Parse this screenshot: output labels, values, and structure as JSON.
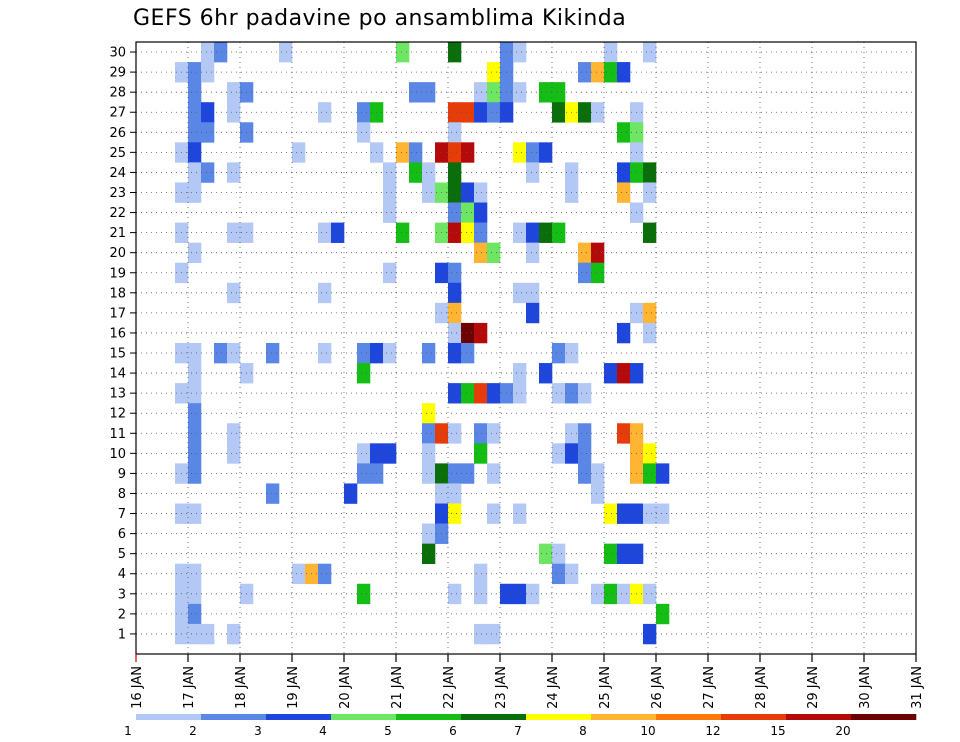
{
  "chart_data": {
    "type": "heatmap",
    "title": "GEFS 6hr padavine po ansamblima Kikinda",
    "xlabel": "",
    "ylabel": "",
    "x_ticks": [
      "16 JAN",
      "17 JAN",
      "18 JAN",
      "19 JAN",
      "20 JAN",
      "21 JAN",
      "22 JAN",
      "23 JAN",
      "24 JAN",
      "25 JAN",
      "26 JAN",
      "27 JAN",
      "28 JAN",
      "29 JAN",
      "30 JAN",
      "31 JAN"
    ],
    "x_unit_columns_per_tick": 4,
    "y_ticks": [
      1,
      2,
      3,
      4,
      5,
      6,
      7,
      8,
      9,
      10,
      11,
      12,
      13,
      14,
      15,
      16,
      17,
      18,
      19,
      20,
      21,
      22,
      23,
      24,
      25,
      26,
      27,
      28,
      29,
      30
    ],
    "grid": true,
    "legend": {
      "placement": "bottom",
      "labels": [
        "1",
        "2",
        "3",
        "4",
        "5",
        "6",
        "7",
        "8",
        "10",
        "12",
        "15",
        "20"
      ],
      "colors": [
        "#b4c8f5",
        "#5a87e6",
        "#1e46dc",
        "#6ee664",
        "#14be14",
        "#0a6e0a",
        "#ffff00",
        "#ffb432",
        "#ff780a",
        "#e63c0a",
        "#b40a0a",
        "#6e0000"
      ]
    },
    "cells": [
      [
        5,
        30,
        1
      ],
      [
        6,
        30,
        2
      ],
      [
        11,
        30,
        1
      ],
      [
        20,
        30,
        4
      ],
      [
        24,
        30,
        6
      ],
      [
        28,
        30,
        2
      ],
      [
        29,
        30,
        1
      ],
      [
        36,
        30,
        1
      ],
      [
        39,
        30,
        1
      ],
      [
        3,
        29,
        1
      ],
      [
        4,
        29,
        2
      ],
      [
        5,
        29,
        1
      ],
      [
        27,
        29,
        7
      ],
      [
        28,
        29,
        2
      ],
      [
        34,
        29,
        2
      ],
      [
        35,
        29,
        8
      ],
      [
        36,
        29,
        5
      ],
      [
        37,
        29,
        3
      ],
      [
        4,
        28,
        2
      ],
      [
        7,
        28,
        1
      ],
      [
        8,
        28,
        2
      ],
      [
        21,
        28,
        2
      ],
      [
        22,
        28,
        2
      ],
      [
        26,
        28,
        1
      ],
      [
        27,
        28,
        4
      ],
      [
        28,
        28,
        2
      ],
      [
        29,
        28,
        1
      ],
      [
        31,
        28,
        5
      ],
      [
        32,
        28,
        5
      ],
      [
        4,
        27,
        2
      ],
      [
        5,
        27,
        3
      ],
      [
        7,
        27,
        1
      ],
      [
        14,
        27,
        1
      ],
      [
        17,
        27,
        2
      ],
      [
        18,
        27,
        5
      ],
      [
        24,
        27,
        10
      ],
      [
        25,
        27,
        10
      ],
      [
        26,
        27,
        3
      ],
      [
        27,
        27,
        2
      ],
      [
        28,
        27,
        3
      ],
      [
        32,
        27,
        6
      ],
      [
        33,
        27,
        7
      ],
      [
        34,
        27,
        6
      ],
      [
        35,
        27,
        1
      ],
      [
        38,
        27,
        1
      ],
      [
        4,
        26,
        2
      ],
      [
        5,
        26,
        2
      ],
      [
        8,
        26,
        2
      ],
      [
        17,
        26,
        1
      ],
      [
        24,
        26,
        1
      ],
      [
        37,
        26,
        5
      ],
      [
        38,
        26,
        4
      ],
      [
        3,
        25,
        1
      ],
      [
        4,
        25,
        3
      ],
      [
        12,
        25,
        1
      ],
      [
        18,
        25,
        1
      ],
      [
        20,
        25,
        8
      ],
      [
        21,
        25,
        2
      ],
      [
        23,
        25,
        11
      ],
      [
        24,
        25,
        10
      ],
      [
        25,
        25,
        11
      ],
      [
        29,
        25,
        7
      ],
      [
        30,
        25,
        2
      ],
      [
        31,
        25,
        3
      ],
      [
        38,
        25,
        1
      ],
      [
        4,
        24,
        1
      ],
      [
        5,
        24,
        2
      ],
      [
        7,
        24,
        1
      ],
      [
        19,
        24,
        1
      ],
      [
        21,
        24,
        5
      ],
      [
        22,
        24,
        1
      ],
      [
        24,
        24,
        6
      ],
      [
        30,
        24,
        1
      ],
      [
        33,
        24,
        1
      ],
      [
        37,
        24,
        3
      ],
      [
        38,
        24,
        5
      ],
      [
        39,
        24,
        6
      ],
      [
        3,
        23,
        1
      ],
      [
        4,
        23,
        1
      ],
      [
        19,
        23,
        1
      ],
      [
        22,
        23,
        1
      ],
      [
        23,
        23,
        4
      ],
      [
        24,
        23,
        6
      ],
      [
        25,
        23,
        3
      ],
      [
        26,
        23,
        1
      ],
      [
        33,
        23,
        1
      ],
      [
        37,
        23,
        8
      ],
      [
        39,
        23,
        1
      ],
      [
        19,
        22,
        1
      ],
      [
        24,
        22,
        2
      ],
      [
        25,
        22,
        4
      ],
      [
        26,
        22,
        3
      ],
      [
        38,
        22,
        1
      ],
      [
        3,
        21,
        1
      ],
      [
        7,
        21,
        1
      ],
      [
        8,
        21,
        1
      ],
      [
        14,
        21,
        1
      ],
      [
        15,
        21,
        3
      ],
      [
        20,
        21,
        5
      ],
      [
        23,
        21,
        4
      ],
      [
        24,
        21,
        11
      ],
      [
        25,
        21,
        7
      ],
      [
        26,
        21,
        2
      ],
      [
        29,
        21,
        1
      ],
      [
        30,
        21,
        3
      ],
      [
        31,
        21,
        6
      ],
      [
        32,
        21,
        5
      ],
      [
        39,
        21,
        6
      ],
      [
        4,
        20,
        1
      ],
      [
        26,
        20,
        8
      ],
      [
        27,
        20,
        4
      ],
      [
        30,
        20,
        1
      ],
      [
        34,
        20,
        8
      ],
      [
        35,
        20,
        11
      ],
      [
        3,
        19,
        1
      ],
      [
        19,
        19,
        1
      ],
      [
        23,
        19,
        3
      ],
      [
        24,
        19,
        2
      ],
      [
        34,
        19,
        2
      ],
      [
        35,
        19,
        5
      ],
      [
        7,
        18,
        1
      ],
      [
        14,
        18,
        1
      ],
      [
        24,
        18,
        3
      ],
      [
        29,
        18,
        1
      ],
      [
        30,
        18,
        1
      ],
      [
        23,
        17,
        1
      ],
      [
        24,
        17,
        8
      ],
      [
        30,
        17,
        3
      ],
      [
        38,
        17,
        1
      ],
      [
        39,
        17,
        8
      ],
      [
        24,
        16,
        1
      ],
      [
        25,
        16,
        12
      ],
      [
        26,
        16,
        11
      ],
      [
        37,
        16,
        3
      ],
      [
        39,
        16,
        1
      ],
      [
        3,
        15,
        1
      ],
      [
        4,
        15,
        1
      ],
      [
        6,
        15,
        2
      ],
      [
        7,
        15,
        1
      ],
      [
        10,
        15,
        2
      ],
      [
        14,
        15,
        1
      ],
      [
        17,
        15,
        2
      ],
      [
        18,
        15,
        3
      ],
      [
        19,
        15,
        1
      ],
      [
        22,
        15,
        2
      ],
      [
        24,
        15,
        3
      ],
      [
        25,
        15,
        2
      ],
      [
        32,
        15,
        2
      ],
      [
        33,
        15,
        1
      ],
      [
        4,
        14,
        1
      ],
      [
        8,
        14,
        1
      ],
      [
        17,
        14,
        5
      ],
      [
        29,
        14,
        1
      ],
      [
        31,
        14,
        3
      ],
      [
        36,
        14,
        3
      ],
      [
        37,
        14,
        11
      ],
      [
        38,
        14,
        3
      ],
      [
        3,
        13,
        1
      ],
      [
        4,
        13,
        1
      ],
      [
        24,
        13,
        3
      ],
      [
        25,
        13,
        5
      ],
      [
        26,
        13,
        10
      ],
      [
        27,
        13,
        3
      ],
      [
        28,
        13,
        2
      ],
      [
        29,
        13,
        1
      ],
      [
        32,
        13,
        1
      ],
      [
        33,
        13,
        2
      ],
      [
        34,
        13,
        1
      ],
      [
        4,
        12,
        2
      ],
      [
        22,
        12,
        7
      ],
      [
        4,
        11,
        2
      ],
      [
        7,
        11,
        1
      ],
      [
        22,
        11,
        2
      ],
      [
        23,
        11,
        10
      ],
      [
        24,
        11,
        1
      ],
      [
        26,
        11,
        2
      ],
      [
        27,
        11,
        1
      ],
      [
        33,
        11,
        1
      ],
      [
        34,
        11,
        2
      ],
      [
        37,
        11,
        10
      ],
      [
        38,
        11,
        8
      ],
      [
        4,
        10,
        2
      ],
      [
        7,
        10,
        1
      ],
      [
        17,
        10,
        1
      ],
      [
        18,
        10,
        3
      ],
      [
        19,
        10,
        3
      ],
      [
        22,
        10,
        1
      ],
      [
        26,
        10,
        5
      ],
      [
        32,
        10,
        1
      ],
      [
        33,
        10,
        3
      ],
      [
        34,
        10,
        2
      ],
      [
        38,
        10,
        8
      ],
      [
        39,
        10,
        7
      ],
      [
        3,
        9,
        1
      ],
      [
        4,
        9,
        2
      ],
      [
        17,
        9,
        2
      ],
      [
        18,
        9,
        2
      ],
      [
        22,
        9,
        1
      ],
      [
        23,
        9,
        6
      ],
      [
        24,
        9,
        2
      ],
      [
        25,
        9,
        2
      ],
      [
        27,
        9,
        1
      ],
      [
        34,
        9,
        2
      ],
      [
        35,
        9,
        1
      ],
      [
        38,
        9,
        8
      ],
      [
        39,
        9,
        5
      ],
      [
        40,
        9,
        3
      ],
      [
        10,
        8,
        2
      ],
      [
        16,
        8,
        3
      ],
      [
        23,
        8,
        1
      ],
      [
        24,
        8,
        1
      ],
      [
        35,
        8,
        1
      ],
      [
        3,
        7,
        1
      ],
      [
        4,
        7,
        1
      ],
      [
        23,
        7,
        3
      ],
      [
        24,
        7,
        7
      ],
      [
        27,
        7,
        1
      ],
      [
        29,
        7,
        1
      ],
      [
        36,
        7,
        7
      ],
      [
        37,
        7,
        3
      ],
      [
        38,
        7,
        3
      ],
      [
        39,
        7,
        1
      ],
      [
        40,
        7,
        1
      ],
      [
        22,
        6,
        1
      ],
      [
        23,
        6,
        2
      ],
      [
        22,
        5,
        6
      ],
      [
        31,
        5,
        4
      ],
      [
        32,
        5,
        1
      ],
      [
        36,
        5,
        5
      ],
      [
        37,
        5,
        3
      ],
      [
        38,
        5,
        3
      ],
      [
        3,
        4,
        1
      ],
      [
        4,
        4,
        1
      ],
      [
        12,
        4,
        1
      ],
      [
        13,
        4,
        8
      ],
      [
        14,
        4,
        2
      ],
      [
        26,
        4,
        1
      ],
      [
        32,
        4,
        2
      ],
      [
        33,
        4,
        1
      ],
      [
        3,
        3,
        1
      ],
      [
        4,
        3,
        1
      ],
      [
        8,
        3,
        1
      ],
      [
        17,
        3,
        5
      ],
      [
        24,
        3,
        1
      ],
      [
        26,
        3,
        1
      ],
      [
        28,
        3,
        3
      ],
      [
        29,
        3,
        3
      ],
      [
        30,
        3,
        1
      ],
      [
        35,
        3,
        1
      ],
      [
        36,
        3,
        5
      ],
      [
        37,
        3,
        1
      ],
      [
        38,
        3,
        7
      ],
      [
        39,
        3,
        1
      ],
      [
        3,
        2,
        1
      ],
      [
        4,
        2,
        2
      ],
      [
        40,
        2,
        5
      ],
      [
        3,
        1,
        1
      ],
      [
        4,
        1,
        1
      ],
      [
        5,
        1,
        1
      ],
      [
        7,
        1,
        1
      ],
      [
        26,
        1,
        1
      ],
      [
        27,
        1,
        1
      ],
      [
        39,
        1,
        3
      ]
    ]
  }
}
